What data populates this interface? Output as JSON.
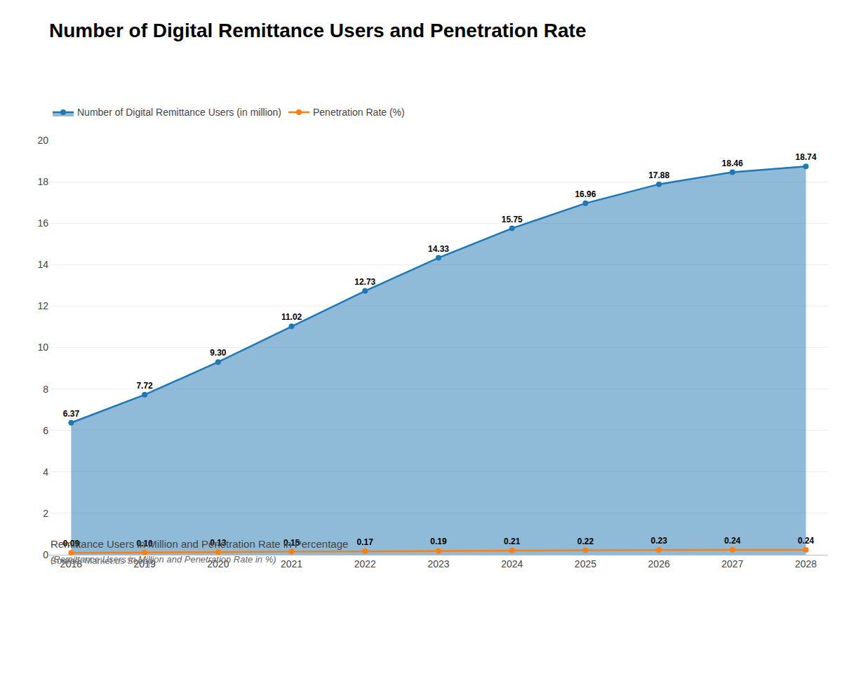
{
  "chart_data": {
    "type": "line",
    "title": "Number of Digital Remittance Users and Penetration Rate",
    "subtitle": "Remittance Users in Million and Penetration Rate in Percentage",
    "annotations": [
      "(Remittance Users in Million and Penetration Rate in %)",
      "Source: Market.us Scoop"
    ],
    "x": [
      2018,
      2019,
      2020,
      2021,
      2022,
      2023,
      2024,
      2025,
      2026,
      2027,
      2028
    ],
    "series": [
      {
        "name": "Number of Digital Remittance Users (in million)",
        "type": "area",
        "marker": "circle",
        "values": [
          6.37,
          7.72,
          9.3,
          11.02,
          12.73,
          14.33,
          15.75,
          16.96,
          17.88,
          18.46,
          18.74
        ],
        "value_labels": [
          "6.37",
          "7.72",
          "9.30",
          "11.02",
          "12.73",
          "14.33",
          "15.75",
          "16.96",
          "17.88",
          "18.46",
          "18.74"
        ]
      },
      {
        "name": "Penetration Rate (%)",
        "type": "line",
        "marker": "circle",
        "values": [
          0.09,
          0.1,
          0.13,
          0.15,
          0.17,
          0.19,
          0.21,
          0.22,
          0.23,
          0.24,
          0.24
        ],
        "value_labels": [
          "0.09",
          "0.10",
          "0.13",
          "0.15",
          "0.17",
          "0.19",
          "0.21",
          "0.22",
          "0.23",
          "0.24",
          "0.24"
        ]
      }
    ],
    "xlim": [
      2017.7,
      2028.3
    ],
    "xticks": [
      2018,
      2019,
      2020,
      2021,
      2022,
      2023,
      2024,
      2025,
      2026,
      2027,
      2028
    ],
    "ylim": [
      0,
      20
    ],
    "yticks": [
      0,
      2,
      4,
      6,
      8,
      10,
      12,
      14,
      16,
      18,
      20
    ],
    "grid": true,
    "legend": "top",
    "data_labels": true
  }
}
